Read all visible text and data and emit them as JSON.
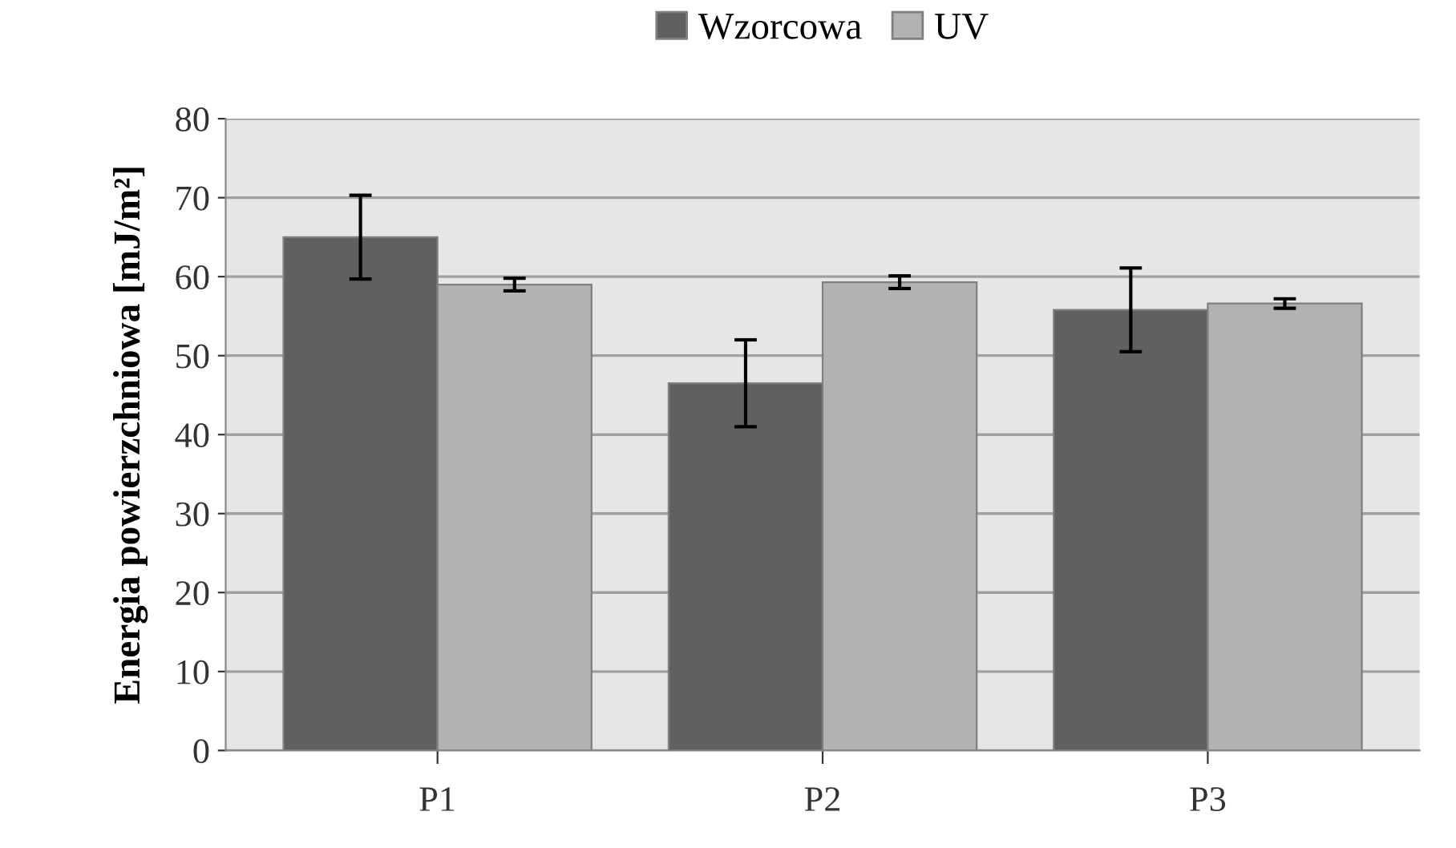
{
  "chart_data": {
    "type": "bar",
    "ylabel": "Energia powierzchniowa [mJ/m²]",
    "categories": [
      "P1",
      "P2",
      "P3"
    ],
    "series": [
      {
        "name": "Wzorcowa",
        "color": "#606060",
        "values": [
          65,
          46.5,
          55.8
        ],
        "errors": [
          5.3,
          5.5,
          5.3
        ]
      },
      {
        "name": "UV",
        "color": "#b2b2b2",
        "values": [
          59,
          59.3,
          56.6
        ],
        "errors": [
          0.8,
          0.8,
          0.6
        ]
      }
    ],
    "ylim": [
      0,
      80
    ],
    "yticks": [
      0,
      10,
      20,
      30,
      40,
      50,
      60,
      70,
      80
    ],
    "grid": "y",
    "legend": "top"
  }
}
